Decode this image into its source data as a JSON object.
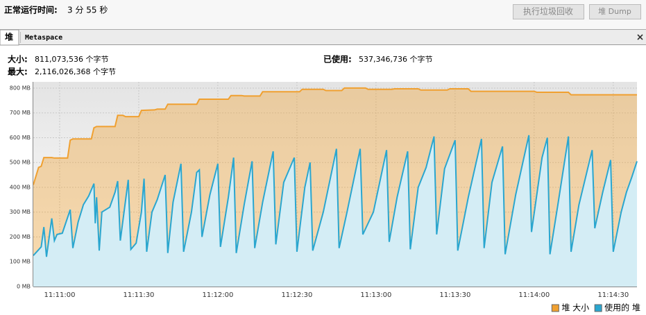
{
  "header": {
    "uptime_label": "正常运行时间:",
    "uptime_value": "3 分 55 秒",
    "buttons": [
      "执行垃圾回收",
      "堆 Dump"
    ]
  },
  "tabs": [
    "堆",
    "Metaspace"
  ],
  "info": {
    "size_label": "大小:",
    "size_value": "811,073,536 个字节",
    "max_label": "最大:",
    "max_value": "2,116,026,368 个字节",
    "used_label": "已使用:",
    "used_value": "537,346,736 个字节"
  },
  "chart_data": {
    "type": "area",
    "grid": true,
    "legend": "bottom-right",
    "xlim": [
      50,
      279
    ],
    "xticks": [
      {
        "value": 60,
        "label": "11:11:00"
      },
      {
        "value": 90,
        "label": "11:11:30"
      },
      {
        "value": 120,
        "label": "11:12:00"
      },
      {
        "value": 150,
        "label": "11:12:30"
      },
      {
        "value": 180,
        "label": "11:13:00"
      },
      {
        "value": 210,
        "label": "11:13:30"
      },
      {
        "value": 240,
        "label": "11:14:00"
      },
      {
        "value": 270,
        "label": "11:14:30"
      }
    ],
    "ylim": [
      0,
      825
    ],
    "yticks": [
      {
        "value": 0,
        "label": "0 MB"
      },
      {
        "value": 100,
        "label": "100 MB"
      },
      {
        "value": 200,
        "label": "200 MB"
      },
      {
        "value": 300,
        "label": "300 MB"
      },
      {
        "value": 400,
        "label": "400 MB"
      },
      {
        "value": 500,
        "label": "500 MB"
      },
      {
        "value": 600,
        "label": "600 MB"
      },
      {
        "value": 700,
        "label": "700 MB"
      },
      {
        "value": 800,
        "label": "800 MB"
      }
    ],
    "series": [
      {
        "name": "堆 大小",
        "color": "#f0a030",
        "x": [
          50,
          52,
          53,
          54,
          57,
          58,
          63,
          64,
          65,
          72,
          73,
          74,
          81,
          82,
          84,
          85,
          90,
          91,
          96,
          97,
          100,
          101,
          112,
          113,
          124,
          125,
          129,
          130,
          136,
          137,
          151,
          152,
          160,
          161,
          167,
          168,
          176,
          177,
          186,
          187,
          196,
          197,
          207,
          208,
          215,
          216,
          240,
          241,
          253,
          254,
          279
        ],
        "values": [
          410,
          480,
          485,
          520,
          520,
          518,
          518,
          590,
          595,
          595,
          640,
          645,
          645,
          690,
          690,
          685,
          685,
          710,
          712,
          715,
          715,
          735,
          735,
          755,
          755,
          770,
          770,
          768,
          768,
          785,
          785,
          795,
          795,
          790,
          790,
          800,
          800,
          795,
          795,
          797,
          797,
          792,
          792,
          797,
          797,
          787,
          787,
          783,
          783,
          773,
          773
        ]
      },
      {
        "name": "使用的 堆",
        "color": "#2aa6cf",
        "x": [
          50,
          53,
          54,
          55,
          57,
          58,
          59,
          61,
          64,
          65,
          67,
          69,
          71,
          73,
          73.5,
          74,
          75,
          76,
          79,
          81,
          82,
          83,
          86,
          87,
          89,
          91,
          92,
          93,
          95,
          97,
          100,
          101,
          103,
          106,
          107,
          110,
          112,
          113,
          114,
          117,
          120,
          121,
          124,
          126,
          127,
          130,
          133,
          134,
          137,
          141,
          142,
          145,
          149,
          150,
          153,
          155,
          156,
          160,
          165,
          166,
          169,
          174,
          175,
          179,
          184,
          185,
          188,
          192,
          193,
          196,
          199,
          202,
          203,
          206,
          210,
          211,
          215,
          220,
          221,
          224,
          228,
          229,
          233,
          238,
          239,
          243,
          245,
          246,
          249,
          253,
          254,
          257,
          262,
          263,
          266,
          269,
          270,
          273,
          275,
          277,
          279
        ],
        "values": [
          125,
          160,
          240,
          120,
          275,
          185,
          210,
          215,
          310,
          155,
          260,
          330,
          365,
          415,
          255,
          360,
          145,
          300,
          320,
          380,
          425,
          185,
          430,
          150,
          175,
          300,
          435,
          140,
          300,
          350,
          450,
          135,
          340,
          495,
          140,
          300,
          460,
          470,
          200,
          370,
          495,
          160,
          360,
          520,
          135,
          330,
          505,
          155,
          340,
          545,
          170,
          420,
          520,
          140,
          400,
          500,
          145,
          300,
          555,
          155,
          300,
          555,
          210,
          300,
          550,
          180,
          360,
          545,
          150,
          400,
          480,
          605,
          210,
          475,
          590,
          145,
          360,
          595,
          155,
          420,
          565,
          130,
          370,
          610,
          220,
          520,
          600,
          130,
          330,
          605,
          140,
          330,
          550,
          235,
          380,
          510,
          140,
          300,
          380,
          440,
          505
        ]
      }
    ]
  }
}
